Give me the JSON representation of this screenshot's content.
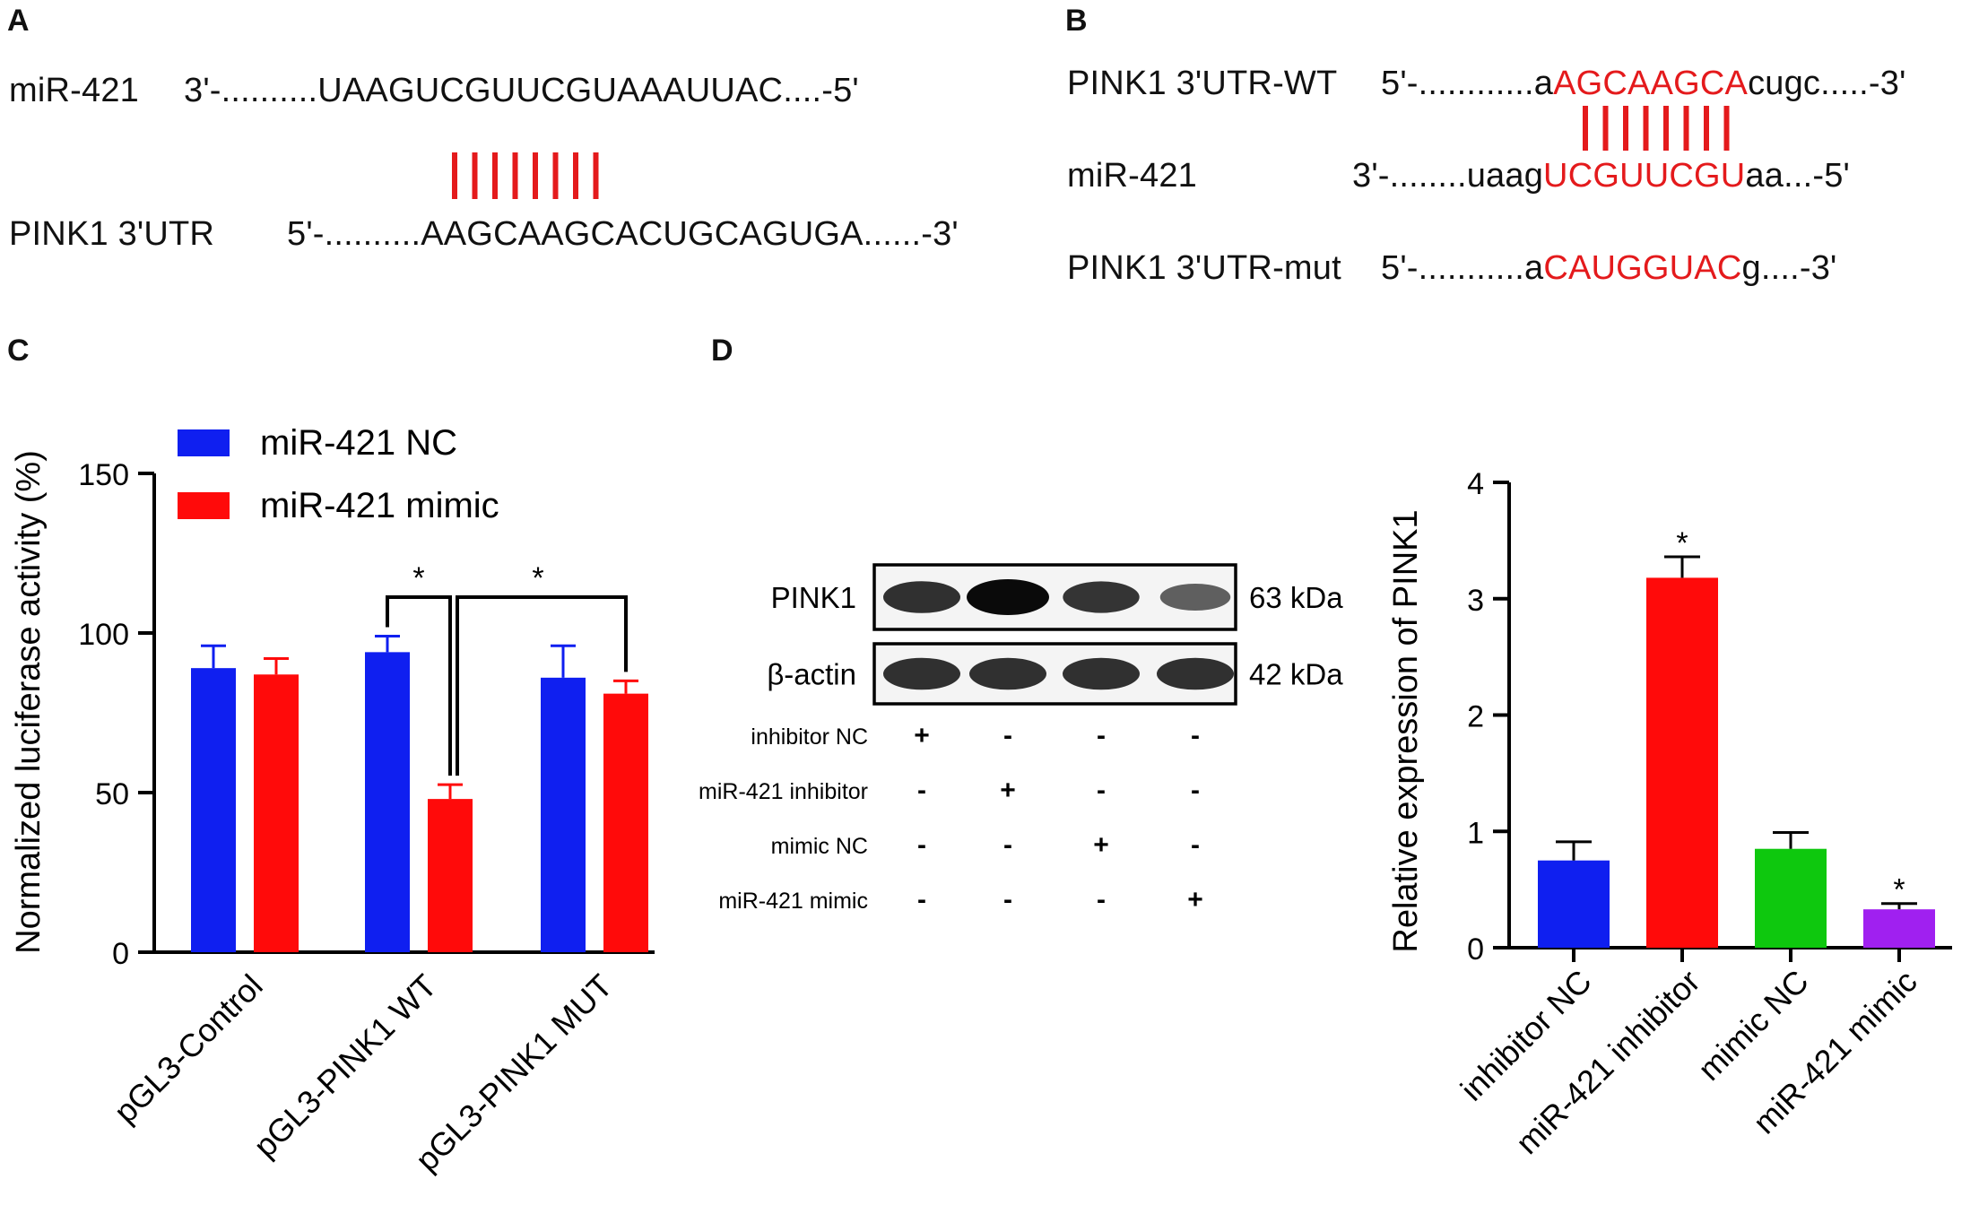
{
  "panels": {
    "a": {
      "letter": "A",
      "mir_label": "miR-421",
      "mir_seq": "3'-..........UAAGUCGUUCGUAAAUUAC....-5'",
      "utr_label": "PINK1 3'UTR",
      "utr_seq": "5'-..........AAGCAAGCACUGCAGUGA......-3'",
      "pair_count": 8
    },
    "b": {
      "letter": "B",
      "wt_label": "PINK1 3'UTR-WT",
      "wt_pre": "5'-............a",
      "wt_site": "AGCAAGCA",
      "wt_post": "cugc.....-3'",
      "mir_label": "miR-421",
      "mir_pre": "3'-........uaag",
      "mir_site": "UCGUUCGU",
      "mir_post": "aa...-5'",
      "mut_label": "PINK1 3'UTR-mut",
      "mut_pre": "5'-...........a",
      "mut_site": "CAUGGUAC",
      "mut_post": "g....-3'",
      "pair_count": 8
    },
    "c": {
      "letter": "C"
    },
    "d": {
      "letter": "D",
      "blot": {
        "rows": [
          {
            "label": "PINK1",
            "size": "63 kDa",
            "intensity": [
              0.8,
              1.0,
              0.78,
              0.55
            ]
          },
          {
            "label": "β-actin",
            "size": "42 kDa",
            "intensity": [
              0.8,
              0.8,
              0.8,
              0.8
            ]
          }
        ],
        "conditions": [
          {
            "label": "inhibitor NC",
            "marks": [
              "+",
              "-",
              "-",
              "-"
            ]
          },
          {
            "label": "miR-421 inhibitor",
            "marks": [
              "-",
              "+",
              "-",
              "-"
            ]
          },
          {
            "label": "mimic NC",
            "marks": [
              "-",
              "-",
              "+",
              "-"
            ]
          },
          {
            "label": "miR-421 mimic",
            "marks": [
              "-",
              "-",
              "-",
              "+"
            ]
          }
        ]
      }
    }
  },
  "chart_data": [
    {
      "type": "bar",
      "title": "",
      "xlabel": "",
      "ylabel": "Normalized luciferase activity (%)",
      "categories": [
        "pGL3-Control",
        "pGL3-PINK1 WT",
        "pGL3-PINK1 MUT"
      ],
      "ylim": [
        0,
        150
      ],
      "yticks": [
        0,
        50,
        100,
        150
      ],
      "series": [
        {
          "name": "miR-421 NC",
          "color": "#0f1ff0",
          "values": [
            89,
            94,
            86
          ],
          "errors": [
            7,
            5,
            10
          ]
        },
        {
          "name": "miR-421  mimic",
          "color": "#ff0a0a",
          "values": [
            87,
            48,
            81
          ],
          "errors": [
            5,
            4.5,
            4
          ]
        }
      ],
      "legend_position": "top-left",
      "significance": [
        {
          "label": "*",
          "from": [
            1,
            0
          ],
          "to": [
            1,
            1
          ]
        },
        {
          "label": "*",
          "from": [
            1,
            1
          ],
          "to": [
            2,
            1
          ]
        }
      ]
    },
    {
      "type": "bar",
      "title": "",
      "xlabel": "",
      "ylabel": "Relative expression of PINK1",
      "categories": [
        "inhibitor NC",
        "miR-421 inhibitor",
        "mimic NC",
        "miR-421 mimic"
      ],
      "values": [
        0.75,
        3.18,
        0.85,
        0.33
      ],
      "errors": [
        0.16,
        0.18,
        0.14,
        0.05
      ],
      "colors": [
        "#0f1ff0",
        "#ff0a0a",
        "#0ec80e",
        "#a020f0"
      ],
      "ylim": [
        0,
        4
      ],
      "yticks": [
        0,
        1,
        2,
        3,
        4
      ],
      "significance_labels": [
        "",
        "*",
        "",
        "*"
      ]
    }
  ]
}
